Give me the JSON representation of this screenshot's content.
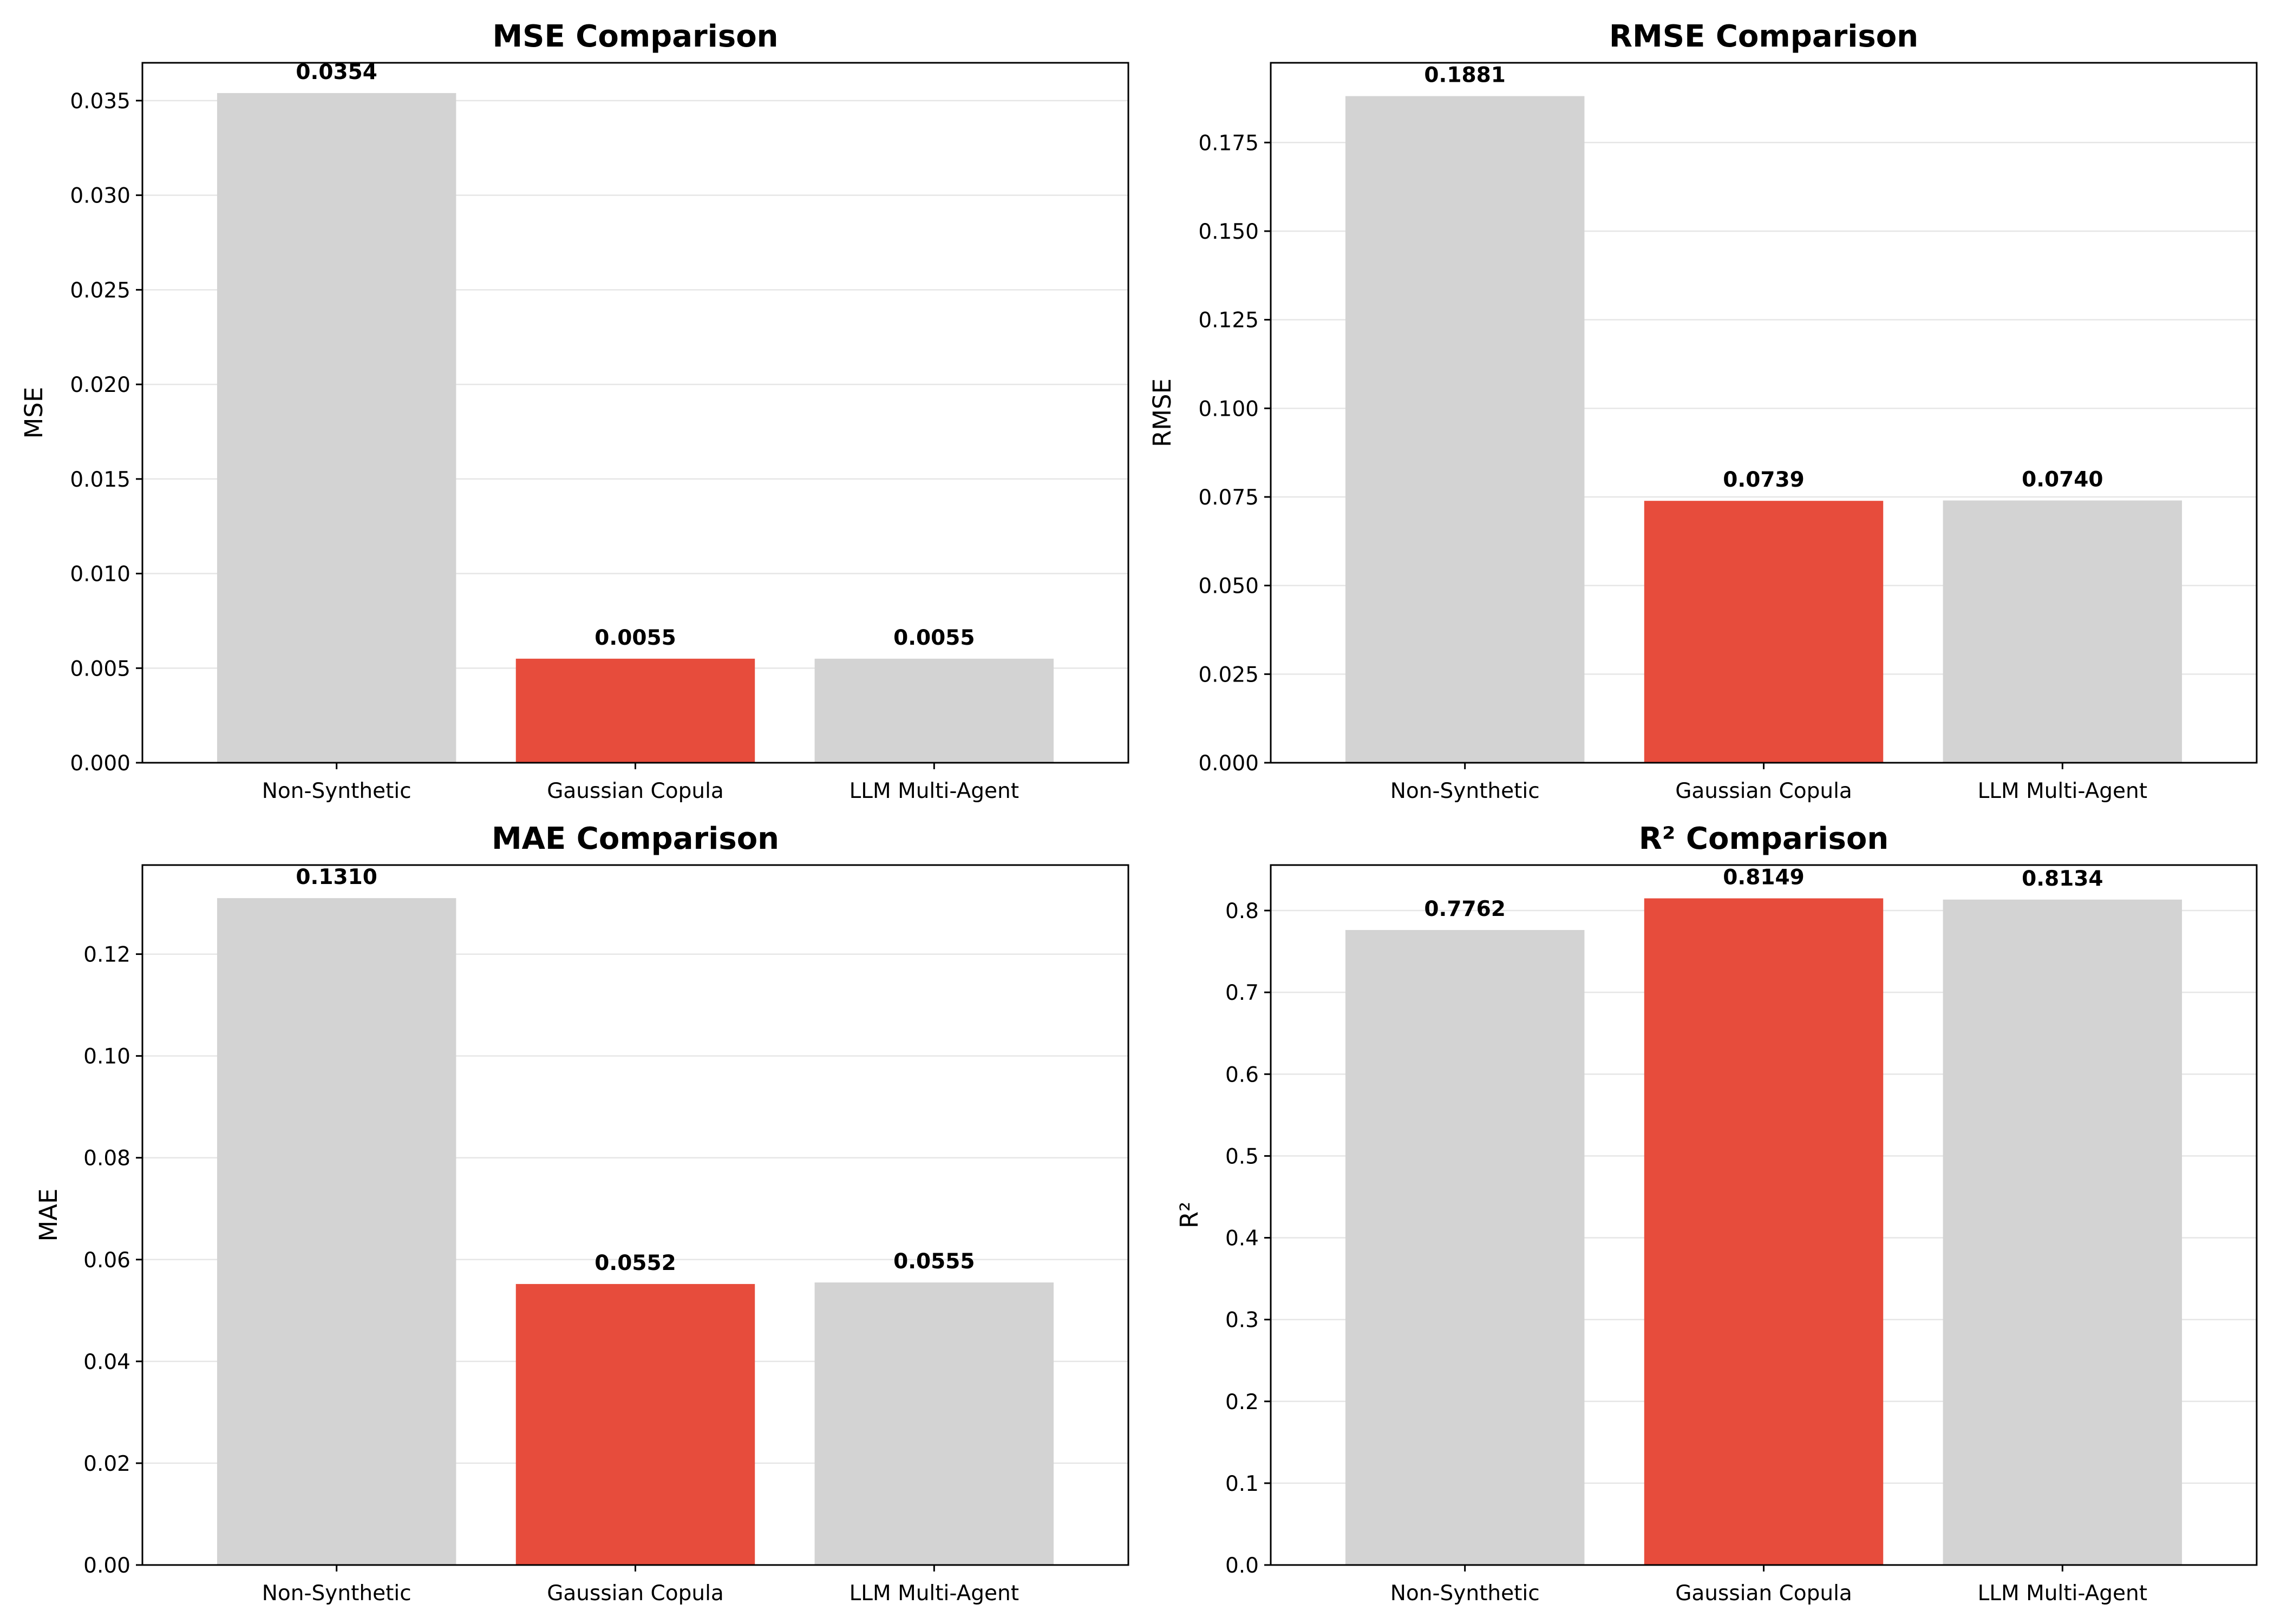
{
  "colors": {
    "default_bar": "#d3d3d3",
    "highlight_bar": "#e74c3c",
    "grid": "#e6e6e6",
    "axis": "#000000"
  },
  "chart_data": [
    {
      "type": "bar",
      "title": "MSE Comparison",
      "ylabel": "MSE",
      "categories": [
        "Non-Synthetic",
        "Gaussian Copula",
        "LLM Multi-Agent"
      ],
      "values": [
        0.0354,
        0.0055,
        0.0055
      ],
      "value_labels": [
        "0.0354",
        "0.0055",
        "0.0055"
      ],
      "highlight_index": 1,
      "ylim": [
        0,
        0.037
      ],
      "yticks": [
        0.0,
        0.005,
        0.01,
        0.015,
        0.02,
        0.025,
        0.03,
        0.035
      ],
      "ytick_labels": [
        "0.000",
        "0.005",
        "0.010",
        "0.015",
        "0.020",
        "0.025",
        "0.030",
        "0.035"
      ],
      "grid": "y"
    },
    {
      "type": "bar",
      "title": "RMSE Comparison",
      "ylabel": "RMSE",
      "categories": [
        "Non-Synthetic",
        "Gaussian Copula",
        "LLM Multi-Agent"
      ],
      "values": [
        0.1881,
        0.0739,
        0.074
      ],
      "value_labels": [
        "0.1881",
        "0.0739",
        "0.0740"
      ],
      "highlight_index": 1,
      "ylim": [
        0,
        0.1975
      ],
      "yticks": [
        0.0,
        0.025,
        0.05,
        0.075,
        0.1,
        0.125,
        0.15,
        0.175
      ],
      "ytick_labels": [
        "0.000",
        "0.025",
        "0.050",
        "0.075",
        "0.100",
        "0.125",
        "0.150",
        "0.175"
      ],
      "grid": "y"
    },
    {
      "type": "bar",
      "title": "MAE Comparison",
      "ylabel": "MAE",
      "categories": [
        "Non-Synthetic",
        "Gaussian Copula",
        "LLM Multi-Agent"
      ],
      "values": [
        0.131,
        0.0552,
        0.0555
      ],
      "value_labels": [
        "0.1310",
        "0.0552",
        "0.0555"
      ],
      "highlight_index": 1,
      "ylim": [
        0,
        0.1375
      ],
      "yticks": [
        0.0,
        0.02,
        0.04,
        0.06,
        0.08,
        0.1,
        0.12
      ],
      "ytick_labels": [
        "0.00",
        "0.02",
        "0.04",
        "0.06",
        "0.08",
        "0.10",
        "0.12"
      ],
      "grid": "y"
    },
    {
      "type": "bar",
      "title": "R² Comparison",
      "ylabel": "R²",
      "categories": [
        "Non-Synthetic",
        "Gaussian Copula",
        "LLM Multi-Agent"
      ],
      "values": [
        0.7762,
        0.8149,
        0.8134
      ],
      "value_labels": [
        "0.7762",
        "0.8149",
        "0.8134"
      ],
      "highlight_index": 1,
      "ylim": [
        0,
        0.8556
      ],
      "yticks": [
        0.0,
        0.1,
        0.2,
        0.3,
        0.4,
        0.5,
        0.6,
        0.7,
        0.8
      ],
      "ytick_labels": [
        "0.0",
        "0.1",
        "0.2",
        "0.3",
        "0.4",
        "0.5",
        "0.6",
        "0.7",
        "0.8"
      ],
      "grid": "y"
    }
  ]
}
